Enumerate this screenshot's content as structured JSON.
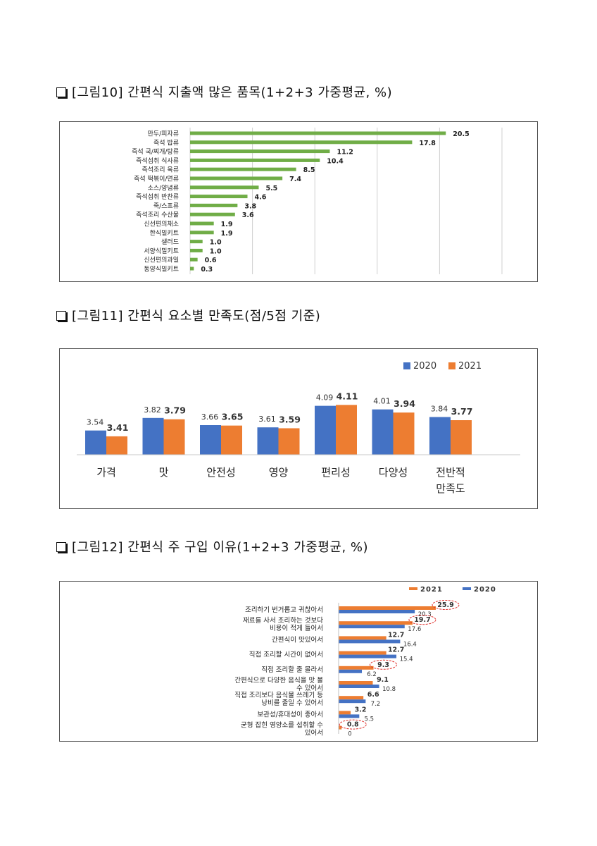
{
  "headings": {
    "fig10": "[그림10] 간편식 지출액 많은 품목(1+2+3 가중평균, %)",
    "fig11": "[그림11] 간편식 요소별 만족도(점/5점 기준)",
    "fig12": "[그림12] 간편식 주 구입 이유(1+2+3 가중평균, %)"
  },
  "colors": {
    "green": "#70ad47",
    "blue": "#4472c4",
    "orange": "#ed7d31"
  },
  "chart_data": [
    {
      "type": "bar",
      "orientation": "horizontal",
      "title": "[그림10] 간편식 지출액 많은 품목(1+2+3 가중평균, %)",
      "categories": [
        "만두/피자류",
        "즉석 밥류",
        "즉석 국/찌개/탕류",
        "즉석섭취 식사류",
        "즉석조리 육류",
        "즉석 떡볶이/면류",
        "소스/양념류",
        "즉석섭취 반찬류",
        "죽/스프류",
        "즉석조리 수산물",
        "신선편의채소",
        "한식밀키트",
        "샐러드",
        "서양식밀키트",
        "신선편의과일",
        "동양식밀키트"
      ],
      "values": [
        20.5,
        17.8,
        11.2,
        10.4,
        8.5,
        7.4,
        5.5,
        4.6,
        3.8,
        3.6,
        1.9,
        1.9,
        1.0,
        1.0,
        0.6,
        0.3
      ],
      "value_labels": [
        "20.5",
        "17.8",
        "11.2",
        "10.4",
        "8.5",
        "7.4",
        "5.5",
        "4.6",
        "3.8",
        "3.6",
        "1.9",
        "1.9",
        "1.0",
        "1.0",
        "0.6",
        "0.3"
      ],
      "xlim": [
        0,
        25
      ],
      "grid": true,
      "legend": "none"
    },
    {
      "type": "bar",
      "title": "[그림11] 간편식 요소별 만족도(점/5점 기준)",
      "categories": [
        [
          "가격"
        ],
        [
          "맛"
        ],
        [
          "안전성"
        ],
        [
          "영양"
        ],
        [
          "편리성"
        ],
        [
          "다양성"
        ],
        [
          "전반적",
          "만족도"
        ]
      ],
      "series": [
        {
          "name": "2020",
          "values": [
            3.54,
            3.82,
            3.66,
            3.61,
            4.09,
            4.01,
            3.84
          ],
          "labels": [
            "3.54",
            "3.82",
            "3.66",
            "3.61",
            "4.09",
            "4.01",
            "3.84"
          ]
        },
        {
          "name": "2021",
          "values": [
            3.41,
            3.79,
            3.65,
            3.59,
            4.11,
            3.94,
            3.77
          ],
          "labels": [
            "3.41",
            "3.79",
            "3.65",
            "3.59",
            "4.11",
            "3.94",
            "3.77"
          ]
        }
      ],
      "ylim": [
        3.0,
        4.5
      ],
      "grid": false,
      "legend": "top-right"
    },
    {
      "type": "bar",
      "orientation": "horizontal",
      "title": "[그림12] 간편식 주 구입 이유(1+2+3 가중평균, %)",
      "categories": [
        [
          "조리하기 번거롭고 귀찮아서"
        ],
        [
          "재료를 사서 조리하는 것보다",
          "비용이 적게 들어서"
        ],
        [
          "간편식이 맛있어서"
        ],
        [
          "직접 조리할 시간이 없어서"
        ],
        [
          "직접 조리할 줄 몰라서"
        ],
        [
          "간편식으로 다양한 음식을 맛 볼",
          "수 있어서"
        ],
        [
          "직접 조리보다 음식물 쓰레기 등",
          "낭비를 줄일 수 있어서"
        ],
        [
          "보관성/휴대성이 좋아서"
        ],
        [
          "균형 잡힌 영양소를 섭취할 수",
          "있어서"
        ]
      ],
      "series": [
        {
          "name": "2021",
          "values": [
            25.9,
            19.7,
            12.7,
            12.7,
            9.3,
            9.1,
            6.6,
            3.2,
            0.8
          ],
          "labels": [
            "25.9",
            "19.7",
            "12.7",
            "12.7",
            "9.3",
            "9.1",
            "6.6",
            "3.2",
            "0.8"
          ]
        },
        {
          "name": "2020",
          "values": [
            20.3,
            17.6,
            16.4,
            15.4,
            6.2,
            10.8,
            7.2,
            5.5,
            0
          ],
          "labels": [
            "20.3",
            "17.6",
            "16.4",
            "15.4",
            "6.2",
            "10.8",
            "7.2",
            "5.5",
            "0"
          ]
        }
      ],
      "highlighted_2021_labels": [
        "25.9",
        "19.7",
        "9.3",
        "0.8"
      ],
      "xlim": [
        0,
        30
      ],
      "grid": false,
      "legend": "top-right"
    }
  ]
}
